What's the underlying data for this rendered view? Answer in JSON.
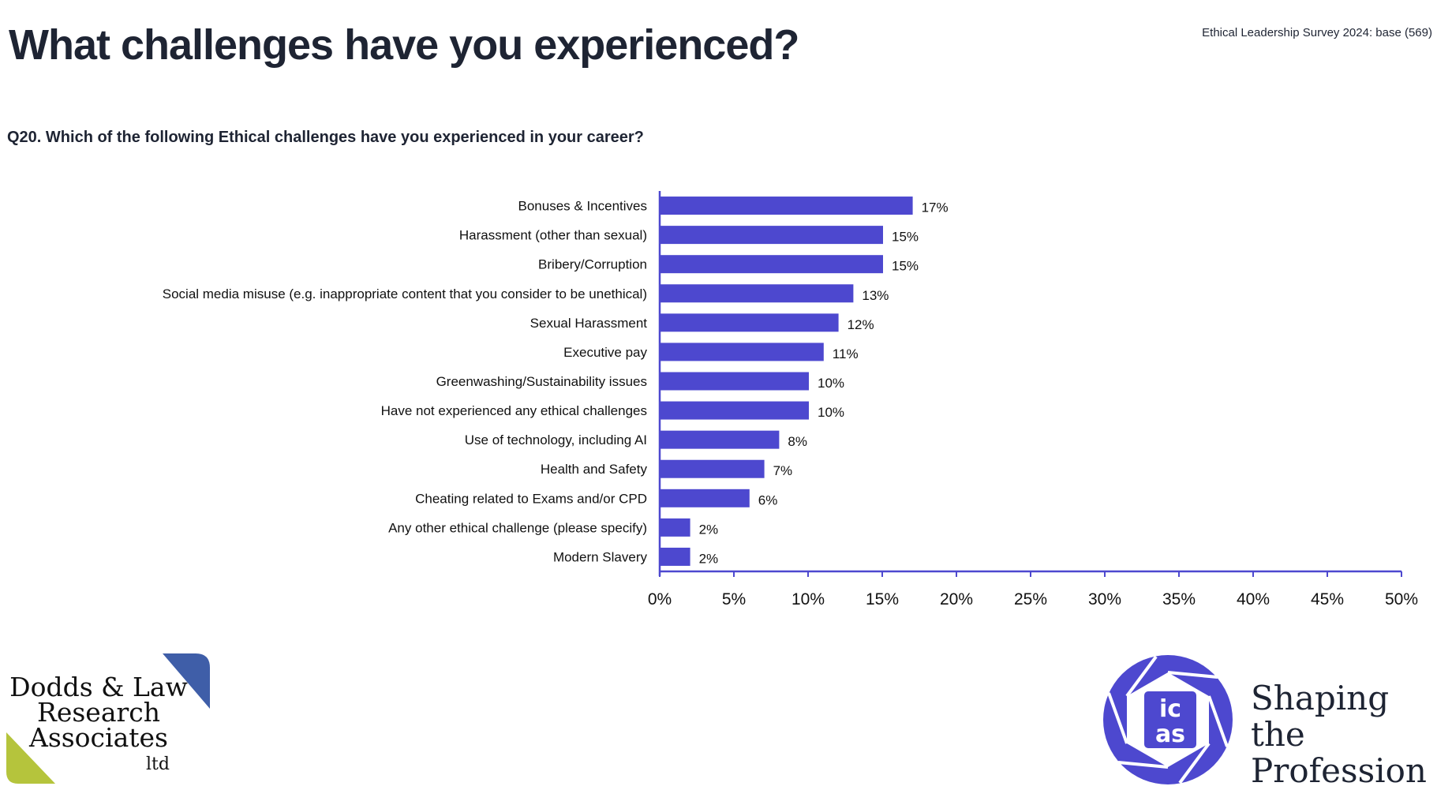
{
  "header": {
    "title": "What challenges have you experienced?",
    "source": "Ethical Leadership Survey 2024: base (569)",
    "question": "Q20. Which of the following Ethical challenges have you experienced in your career?"
  },
  "colors": {
    "bar": "#4d48cf",
    "axis": "#4d48cf",
    "text": "#1e2433",
    "logo_blue": "#3f5ea8",
    "logo_green": "#b5c43c",
    "icas_purple": "#4d48cf"
  },
  "chart_data": {
    "type": "bar",
    "orientation": "horizontal",
    "title": "Q20. Which of the following Ethical challenges have you experienced in your career?",
    "xlabel": "",
    "ylabel": "",
    "categories": [
      "Bonuses & Incentives",
      "Harassment (other than sexual)",
      "Bribery/Corruption",
      "Social media misuse (e.g. inappropriate content that you consider to be unethical)",
      "Sexual Harassment",
      "Executive pay",
      "Greenwashing/Sustainability issues",
      "Have not experienced any ethical challenges",
      "Use of technology, including AI",
      "Health and Safety",
      "Cheating related to Exams and/or CPD",
      "Any other ethical challenge (please specify)",
      "Modern Slavery"
    ],
    "values": [
      17,
      15,
      15,
      13,
      12,
      11,
      10,
      10,
      8,
      7,
      6,
      2,
      2
    ],
    "value_labels": [
      "17%",
      "15%",
      "15%",
      "13%",
      "12%",
      "11%",
      "10%",
      "10%",
      "8%",
      "7%",
      "6%",
      "2%",
      "2%"
    ],
    "xlim": [
      0,
      50
    ],
    "xticks": [
      0,
      5,
      10,
      15,
      20,
      25,
      30,
      35,
      40,
      45,
      50
    ],
    "xtick_labels": [
      "0%",
      "5%",
      "10%",
      "15%",
      "20%",
      "25%",
      "30%",
      "35%",
      "40%",
      "45%",
      "50%"
    ],
    "grid": false,
    "legend": "none"
  },
  "footer": {
    "left_logo": {
      "line1": "Dodds & Law",
      "line2": "Research",
      "line3": "Associates",
      "suffix": "ltd"
    },
    "right_logo": {
      "mark_top": "ic",
      "mark_bottom": "as",
      "tagline_line1": "Shaping the",
      "tagline_line2": "Profession"
    }
  }
}
